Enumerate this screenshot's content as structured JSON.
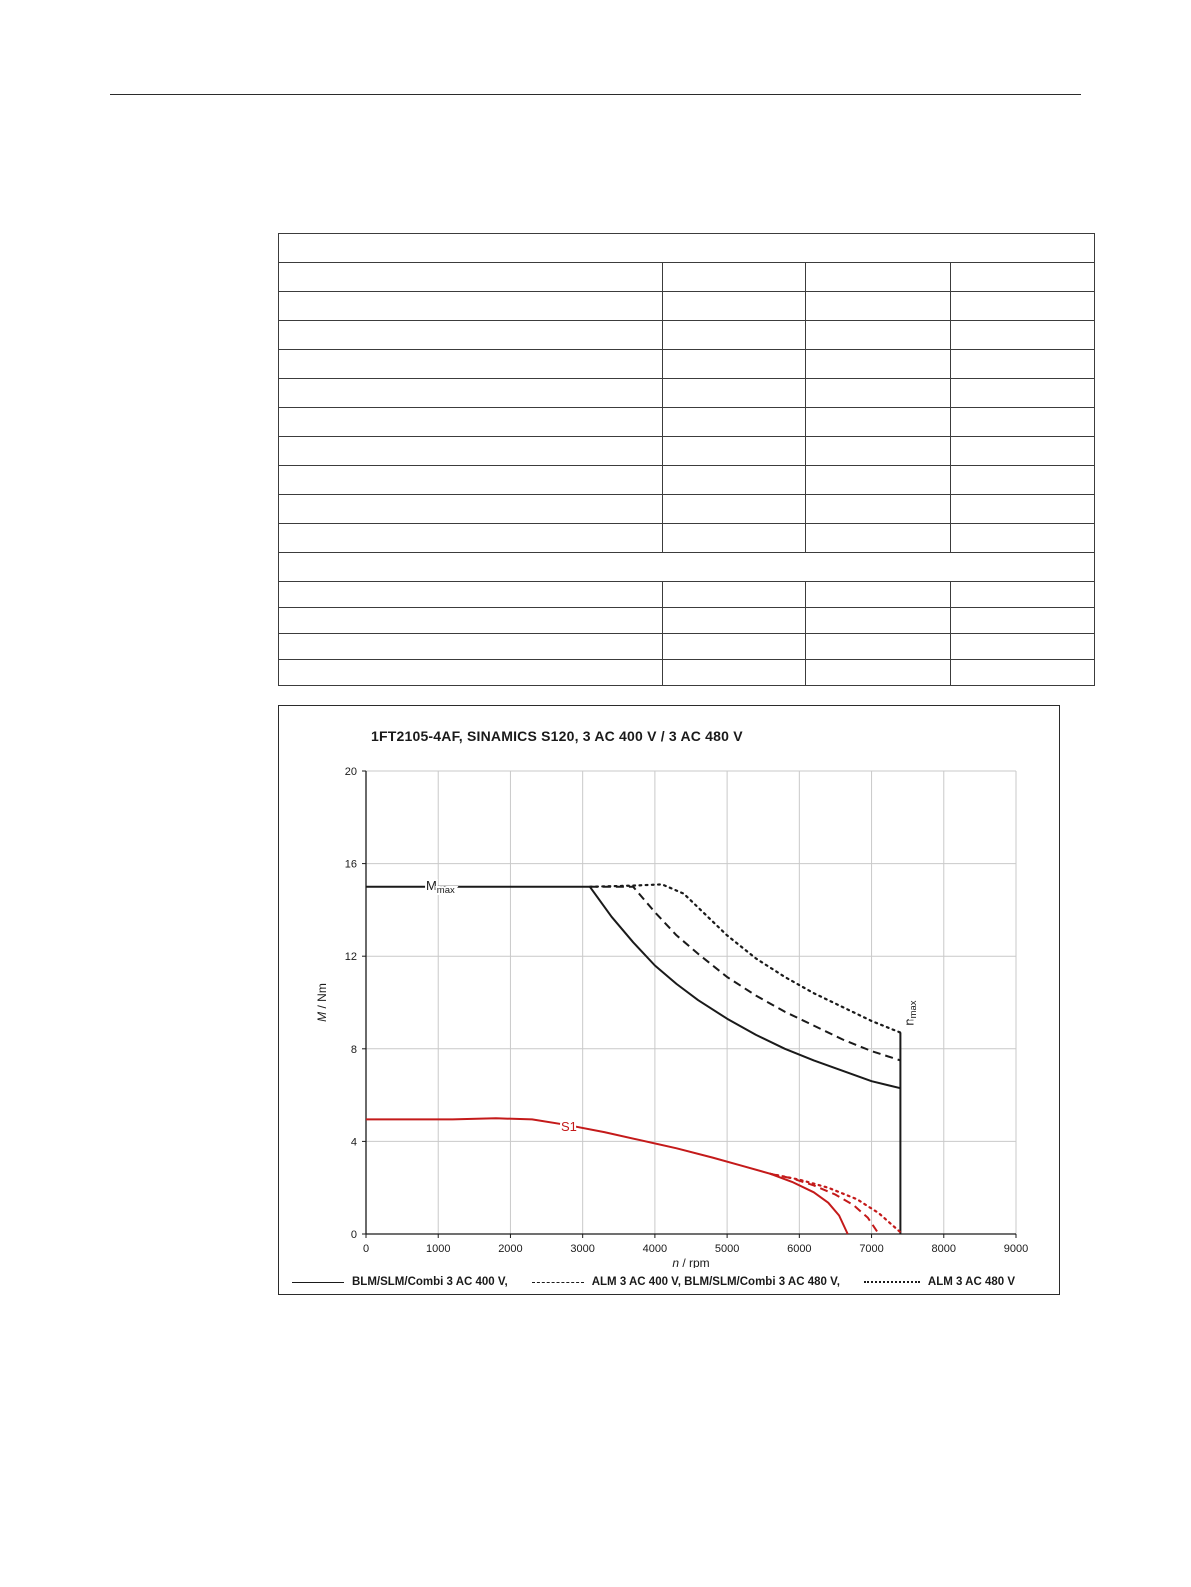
{
  "page": {
    "background": "#ffffff"
  },
  "table": {
    "rows": [
      {
        "cells": [
          ""
        ]
      },
      {
        "cells": [
          "",
          "",
          "",
          ""
        ]
      },
      {
        "cells": [
          "",
          "",
          "",
          ""
        ]
      },
      {
        "cells": [
          "",
          "",
          "",
          ""
        ]
      },
      {
        "cells": [
          "",
          "",
          "",
          ""
        ]
      },
      {
        "cells": [
          "",
          "",
          "",
          ""
        ]
      },
      {
        "cells": [
          "",
          "",
          "",
          ""
        ]
      },
      {
        "cells": [
          "",
          "",
          "",
          ""
        ]
      },
      {
        "cells": [
          "",
          "",
          "",
          ""
        ]
      },
      {
        "cells": [
          "",
          "",
          "",
          ""
        ]
      },
      {
        "cells": [
          "",
          "",
          "",
          ""
        ]
      },
      {
        "cells": [
          ""
        ]
      },
      {
        "cells": [
          "",
          "",
          "",
          ""
        ]
      },
      {
        "cells": [
          "",
          "",
          "",
          ""
        ]
      },
      {
        "cells": [
          "",
          "",
          "",
          ""
        ]
      },
      {
        "cells": [
          "",
          "",
          "",
          ""
        ]
      }
    ]
  },
  "chart_data": {
    "type": "line",
    "title": "1FT2105-4AF,  SINAMICS S120,  3 AC 400 V / 3 AC 480 V",
    "xlabel": "n / rpm",
    "ylabel": "M / Nm",
    "xlim": [
      0,
      9000
    ],
    "ylim": [
      0,
      20
    ],
    "xticks": [
      0,
      1000,
      2000,
      3000,
      4000,
      5000,
      6000,
      7000,
      8000,
      9000
    ],
    "yticks": [
      0,
      4,
      8,
      12,
      16,
      20
    ],
    "grid": true,
    "legend_position": "bottom",
    "colors": {
      "axis": "#1a1a1a",
      "grid": "#c9c9c9",
      "black": "#1a1a1a",
      "red": "#c41a1a"
    },
    "series": [
      {
        "id": "mmax-blm-slm-combi-400v",
        "name": "BLM/SLM/Combi 3 AC 400 V",
        "style": "solid",
        "color": "#1a1a1a",
        "width": 2,
        "points": [
          [
            0,
            15
          ],
          [
            3100,
            15
          ],
          [
            3400,
            13.7
          ],
          [
            3700,
            12.6
          ],
          [
            4000,
            11.6
          ],
          [
            4300,
            10.8
          ],
          [
            4600,
            10.1
          ],
          [
            5000,
            9.3
          ],
          [
            5400,
            8.6
          ],
          [
            5800,
            8.0
          ],
          [
            6200,
            7.5
          ],
          [
            6600,
            7.05
          ],
          [
            7000,
            6.6
          ],
          [
            7400,
            6.3
          ]
        ]
      },
      {
        "id": "nmax-limit-line",
        "name": "n_max limit",
        "style": "solid",
        "color": "#1a1a1a",
        "width": 2,
        "points": [
          [
            7400,
            8.7
          ],
          [
            7400,
            0
          ]
        ]
      },
      {
        "id": "mmax-alm-400v-blm-480v",
        "name": "ALM 3 AC 400 V, BLM/SLM/Combi 3 AC 480 V",
        "style": "dashed",
        "color": "#1a1a1a",
        "width": 2,
        "points": [
          [
            3100,
            15
          ],
          [
            3700,
            15
          ],
          [
            4000,
            13.9
          ],
          [
            4300,
            12.9
          ],
          [
            4600,
            12.1
          ],
          [
            5000,
            11.1
          ],
          [
            5400,
            10.3
          ],
          [
            5800,
            9.6
          ],
          [
            6200,
            9.0
          ],
          [
            6600,
            8.4
          ],
          [
            7000,
            7.9
          ],
          [
            7400,
            7.5
          ]
        ]
      },
      {
        "id": "mmax-alm-480v",
        "name": "ALM 3 AC 480 V",
        "style": "dotted",
        "color": "#1a1a1a",
        "width": 2.2,
        "points": [
          [
            3100,
            15
          ],
          [
            3700,
            15.05
          ],
          [
            4100,
            15.1
          ],
          [
            4400,
            14.7
          ],
          [
            4700,
            13.8
          ],
          [
            5000,
            12.9
          ],
          [
            5400,
            11.9
          ],
          [
            5800,
            11.1
          ],
          [
            6200,
            10.4
          ],
          [
            6600,
            9.8
          ],
          [
            7000,
            9.2
          ],
          [
            7400,
            8.7
          ]
        ]
      },
      {
        "id": "s1-solid",
        "name": "S1 BLM/SLM/Combi 3 AC 400 V",
        "style": "solid",
        "color": "#c41a1a",
        "width": 2,
        "points": [
          [
            0,
            4.95
          ],
          [
            1200,
            4.95
          ],
          [
            1800,
            5.0
          ],
          [
            2300,
            4.95
          ],
          [
            2800,
            4.7
          ],
          [
            3300,
            4.4
          ],
          [
            3800,
            4.05
          ],
          [
            4300,
            3.7
          ],
          [
            4800,
            3.3
          ],
          [
            5200,
            2.95
          ],
          [
            5600,
            2.6
          ],
          [
            5900,
            2.25
          ],
          [
            6200,
            1.8
          ],
          [
            6400,
            1.35
          ],
          [
            6550,
            0.8
          ],
          [
            6670,
            0
          ]
        ]
      },
      {
        "id": "s1-dashed",
        "name": "S1 ALM 3 AC 400 V, BLM/SLM/Combi 3 AC 480 V",
        "style": "dashed",
        "color": "#c41a1a",
        "width": 2,
        "points": [
          [
            5600,
            2.6
          ],
          [
            5900,
            2.4
          ],
          [
            6200,
            2.1
          ],
          [
            6500,
            1.7
          ],
          [
            6750,
            1.25
          ],
          [
            6950,
            0.7
          ],
          [
            7100,
            0
          ]
        ]
      },
      {
        "id": "s1-dotted",
        "name": "S1 ALM 3 AC 480 V",
        "style": "dotted",
        "color": "#c41a1a",
        "width": 2.2,
        "points": [
          [
            5600,
            2.6
          ],
          [
            6000,
            2.35
          ],
          [
            6400,
            2.0
          ],
          [
            6800,
            1.5
          ],
          [
            7100,
            0.9
          ],
          [
            7300,
            0.35
          ],
          [
            7420,
            0.02
          ]
        ]
      }
    ],
    "annotations": [
      {
        "id": "mmax-label",
        "text": "M",
        "sub": "max",
        "x": 830,
        "y": 15.0,
        "rotate": 0,
        "color": "#1a1a1a"
      },
      {
        "id": "s1-label",
        "text": "S1",
        "sub": "",
        "x": 2700,
        "y": 4.6,
        "rotate": 0,
        "color": "#c41a1a"
      },
      {
        "id": "nmax-label",
        "text": "n",
        "sub": "max",
        "x": 7530,
        "y": 9.0,
        "rotate": -90,
        "color": "#1a1a1a"
      }
    ],
    "legend": [
      {
        "style": "solid",
        "label": "BLM/SLM/Combi 3 AC 400 V,"
      },
      {
        "style": "dashed",
        "label": "ALM 3 AC 400 V, BLM/SLM/Combi 3 AC 480 V,"
      },
      {
        "style": "dotted",
        "label": "ALM 3 AC 480 V"
      }
    ]
  }
}
